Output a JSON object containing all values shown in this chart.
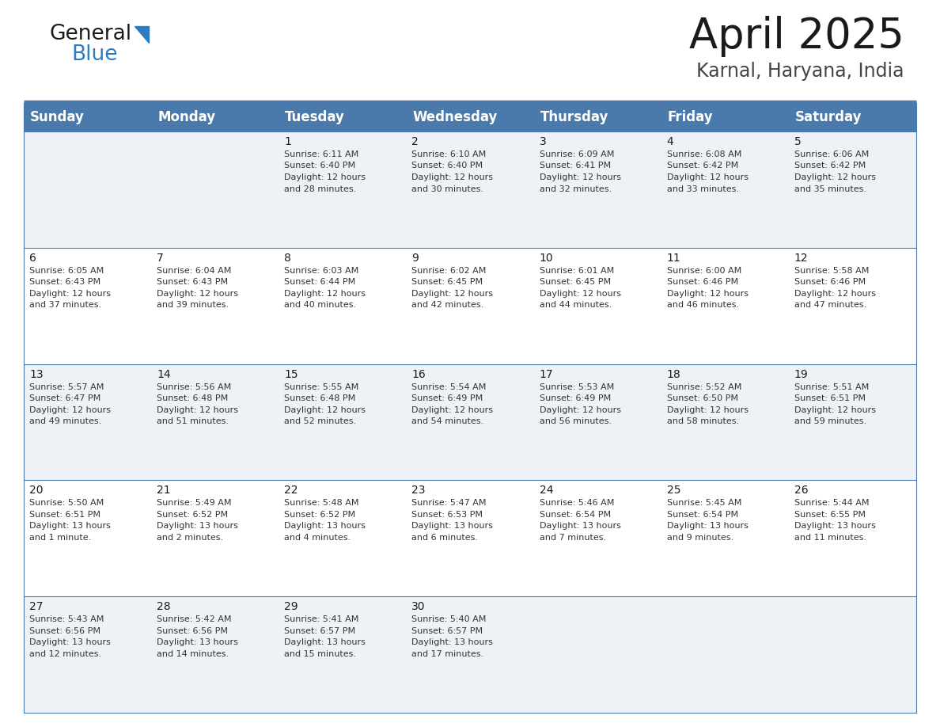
{
  "title": "April 2025",
  "subtitle": "Karnal, Haryana, India",
  "header_bg": "#4a7aab",
  "header_text_color": "#ffffff",
  "cell_bg_light": "#eef2f7",
  "cell_bg_white": "#ffffff",
  "border_color": "#4a7aab",
  "text_color": "#333333",
  "days_of_week": [
    "Sunday",
    "Monday",
    "Tuesday",
    "Wednesday",
    "Thursday",
    "Friday",
    "Saturday"
  ],
  "calendar_data": [
    [
      {
        "day": "",
        "info": ""
      },
      {
        "day": "",
        "info": ""
      },
      {
        "day": "1",
        "info": "Sunrise: 6:11 AM\nSunset: 6:40 PM\nDaylight: 12 hours\nand 28 minutes."
      },
      {
        "day": "2",
        "info": "Sunrise: 6:10 AM\nSunset: 6:40 PM\nDaylight: 12 hours\nand 30 minutes."
      },
      {
        "day": "3",
        "info": "Sunrise: 6:09 AM\nSunset: 6:41 PM\nDaylight: 12 hours\nand 32 minutes."
      },
      {
        "day": "4",
        "info": "Sunrise: 6:08 AM\nSunset: 6:42 PM\nDaylight: 12 hours\nand 33 minutes."
      },
      {
        "day": "5",
        "info": "Sunrise: 6:06 AM\nSunset: 6:42 PM\nDaylight: 12 hours\nand 35 minutes."
      }
    ],
    [
      {
        "day": "6",
        "info": "Sunrise: 6:05 AM\nSunset: 6:43 PM\nDaylight: 12 hours\nand 37 minutes."
      },
      {
        "day": "7",
        "info": "Sunrise: 6:04 AM\nSunset: 6:43 PM\nDaylight: 12 hours\nand 39 minutes."
      },
      {
        "day": "8",
        "info": "Sunrise: 6:03 AM\nSunset: 6:44 PM\nDaylight: 12 hours\nand 40 minutes."
      },
      {
        "day": "9",
        "info": "Sunrise: 6:02 AM\nSunset: 6:45 PM\nDaylight: 12 hours\nand 42 minutes."
      },
      {
        "day": "10",
        "info": "Sunrise: 6:01 AM\nSunset: 6:45 PM\nDaylight: 12 hours\nand 44 minutes."
      },
      {
        "day": "11",
        "info": "Sunrise: 6:00 AM\nSunset: 6:46 PM\nDaylight: 12 hours\nand 46 minutes."
      },
      {
        "day": "12",
        "info": "Sunrise: 5:58 AM\nSunset: 6:46 PM\nDaylight: 12 hours\nand 47 minutes."
      }
    ],
    [
      {
        "day": "13",
        "info": "Sunrise: 5:57 AM\nSunset: 6:47 PM\nDaylight: 12 hours\nand 49 minutes."
      },
      {
        "day": "14",
        "info": "Sunrise: 5:56 AM\nSunset: 6:48 PM\nDaylight: 12 hours\nand 51 minutes."
      },
      {
        "day": "15",
        "info": "Sunrise: 5:55 AM\nSunset: 6:48 PM\nDaylight: 12 hours\nand 52 minutes."
      },
      {
        "day": "16",
        "info": "Sunrise: 5:54 AM\nSunset: 6:49 PM\nDaylight: 12 hours\nand 54 minutes."
      },
      {
        "day": "17",
        "info": "Sunrise: 5:53 AM\nSunset: 6:49 PM\nDaylight: 12 hours\nand 56 minutes."
      },
      {
        "day": "18",
        "info": "Sunrise: 5:52 AM\nSunset: 6:50 PM\nDaylight: 12 hours\nand 58 minutes."
      },
      {
        "day": "19",
        "info": "Sunrise: 5:51 AM\nSunset: 6:51 PM\nDaylight: 12 hours\nand 59 minutes."
      }
    ],
    [
      {
        "day": "20",
        "info": "Sunrise: 5:50 AM\nSunset: 6:51 PM\nDaylight: 13 hours\nand 1 minute."
      },
      {
        "day": "21",
        "info": "Sunrise: 5:49 AM\nSunset: 6:52 PM\nDaylight: 13 hours\nand 2 minutes."
      },
      {
        "day": "22",
        "info": "Sunrise: 5:48 AM\nSunset: 6:52 PM\nDaylight: 13 hours\nand 4 minutes."
      },
      {
        "day": "23",
        "info": "Sunrise: 5:47 AM\nSunset: 6:53 PM\nDaylight: 13 hours\nand 6 minutes."
      },
      {
        "day": "24",
        "info": "Sunrise: 5:46 AM\nSunset: 6:54 PM\nDaylight: 13 hours\nand 7 minutes."
      },
      {
        "day": "25",
        "info": "Sunrise: 5:45 AM\nSunset: 6:54 PM\nDaylight: 13 hours\nand 9 minutes."
      },
      {
        "day": "26",
        "info": "Sunrise: 5:44 AM\nSunset: 6:55 PM\nDaylight: 13 hours\nand 11 minutes."
      }
    ],
    [
      {
        "day": "27",
        "info": "Sunrise: 5:43 AM\nSunset: 6:56 PM\nDaylight: 13 hours\nand 12 minutes."
      },
      {
        "day": "28",
        "info": "Sunrise: 5:42 AM\nSunset: 6:56 PM\nDaylight: 13 hours\nand 14 minutes."
      },
      {
        "day": "29",
        "info": "Sunrise: 5:41 AM\nSunset: 6:57 PM\nDaylight: 13 hours\nand 15 minutes."
      },
      {
        "day": "30",
        "info": "Sunrise: 5:40 AM\nSunset: 6:57 PM\nDaylight: 13 hours\nand 17 minutes."
      },
      {
        "day": "",
        "info": ""
      },
      {
        "day": "",
        "info": ""
      },
      {
        "day": "",
        "info": ""
      }
    ]
  ],
  "title_fontsize": 38,
  "subtitle_fontsize": 17,
  "header_fontsize": 12,
  "day_num_fontsize": 10,
  "cell_fontsize": 8,
  "logo_general_fontsize": 19,
  "logo_blue_fontsize": 19
}
